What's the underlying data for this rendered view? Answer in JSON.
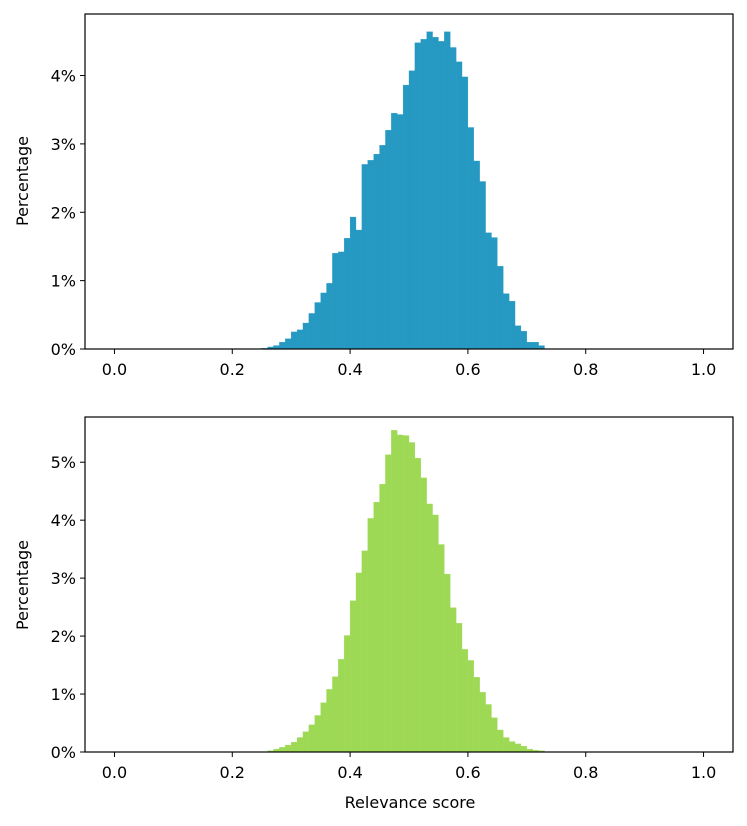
{
  "chart_data": [
    {
      "type": "bar",
      "color": "#2599C2",
      "xlabel": "",
      "ylabel": "Percentage",
      "xlim": [
        -0.05,
        1.05
      ],
      "ylim": [
        0,
        4.9
      ],
      "xticks": [
        0.0,
        0.2,
        0.4,
        0.6,
        0.8,
        1.0
      ],
      "xtick_labels": [
        "0.0",
        "0.2",
        "0.4",
        "0.6",
        "0.8",
        "1.0"
      ],
      "yticks": [
        0,
        1,
        2,
        3,
        4
      ],
      "ytick_labels": [
        "0%",
        "1%",
        "2%",
        "3%",
        "4%"
      ],
      "bin_start": 0.25,
      "bin_width": 0.01,
      "values": [
        0.01,
        0.03,
        0.05,
        0.1,
        0.15,
        0.25,
        0.28,
        0.38,
        0.52,
        0.68,
        0.82,
        0.96,
        1.4,
        1.42,
        1.62,
        1.93,
        1.74,
        2.7,
        2.76,
        2.85,
        2.98,
        3.2,
        3.45,
        3.43,
        3.86,
        4.07,
        4.48,
        4.53,
        4.64,
        4.56,
        4.5,
        4.64,
        4.41,
        4.2,
        3.98,
        3.24,
        2.75,
        2.45,
        1.7,
        1.63,
        1.21,
        0.81,
        0.7,
        0.34,
        0.26,
        0.1,
        0.1,
        0.05
      ]
    },
    {
      "type": "bar",
      "color": "#9ED955",
      "xlabel": "Relevance score",
      "ylabel": "Percentage",
      "xlim": [
        -0.05,
        1.05
      ],
      "ylim": [
        0,
        5.78
      ],
      "xticks": [
        0.0,
        0.2,
        0.4,
        0.6,
        0.8,
        1.0
      ],
      "xtick_labels": [
        "0.0",
        "0.2",
        "0.4",
        "0.6",
        "0.8",
        "1.0"
      ],
      "yticks": [
        0,
        1,
        2,
        3,
        4,
        5
      ],
      "ytick_labels": [
        "0%",
        "1%",
        "2%",
        "3%",
        "4%",
        "5%"
      ],
      "bin_start": 0.26,
      "bin_width": 0.01,
      "values": [
        0.02,
        0.05,
        0.08,
        0.12,
        0.17,
        0.25,
        0.35,
        0.47,
        0.63,
        0.85,
        1.08,
        1.3,
        1.6,
        2.01,
        2.61,
        3.09,
        3.47,
        4.03,
        4.31,
        4.62,
        5.13,
        5.55,
        5.47,
        5.46,
        5.34,
        5.07,
        4.73,
        4.28,
        4.09,
        3.58,
        3.07,
        2.49,
        2.22,
        1.77,
        1.58,
        1.29,
        1.03,
        0.82,
        0.59,
        0.38,
        0.25,
        0.18,
        0.14,
        0.1,
        0.05,
        0.03,
        0.02
      ]
    }
  ]
}
